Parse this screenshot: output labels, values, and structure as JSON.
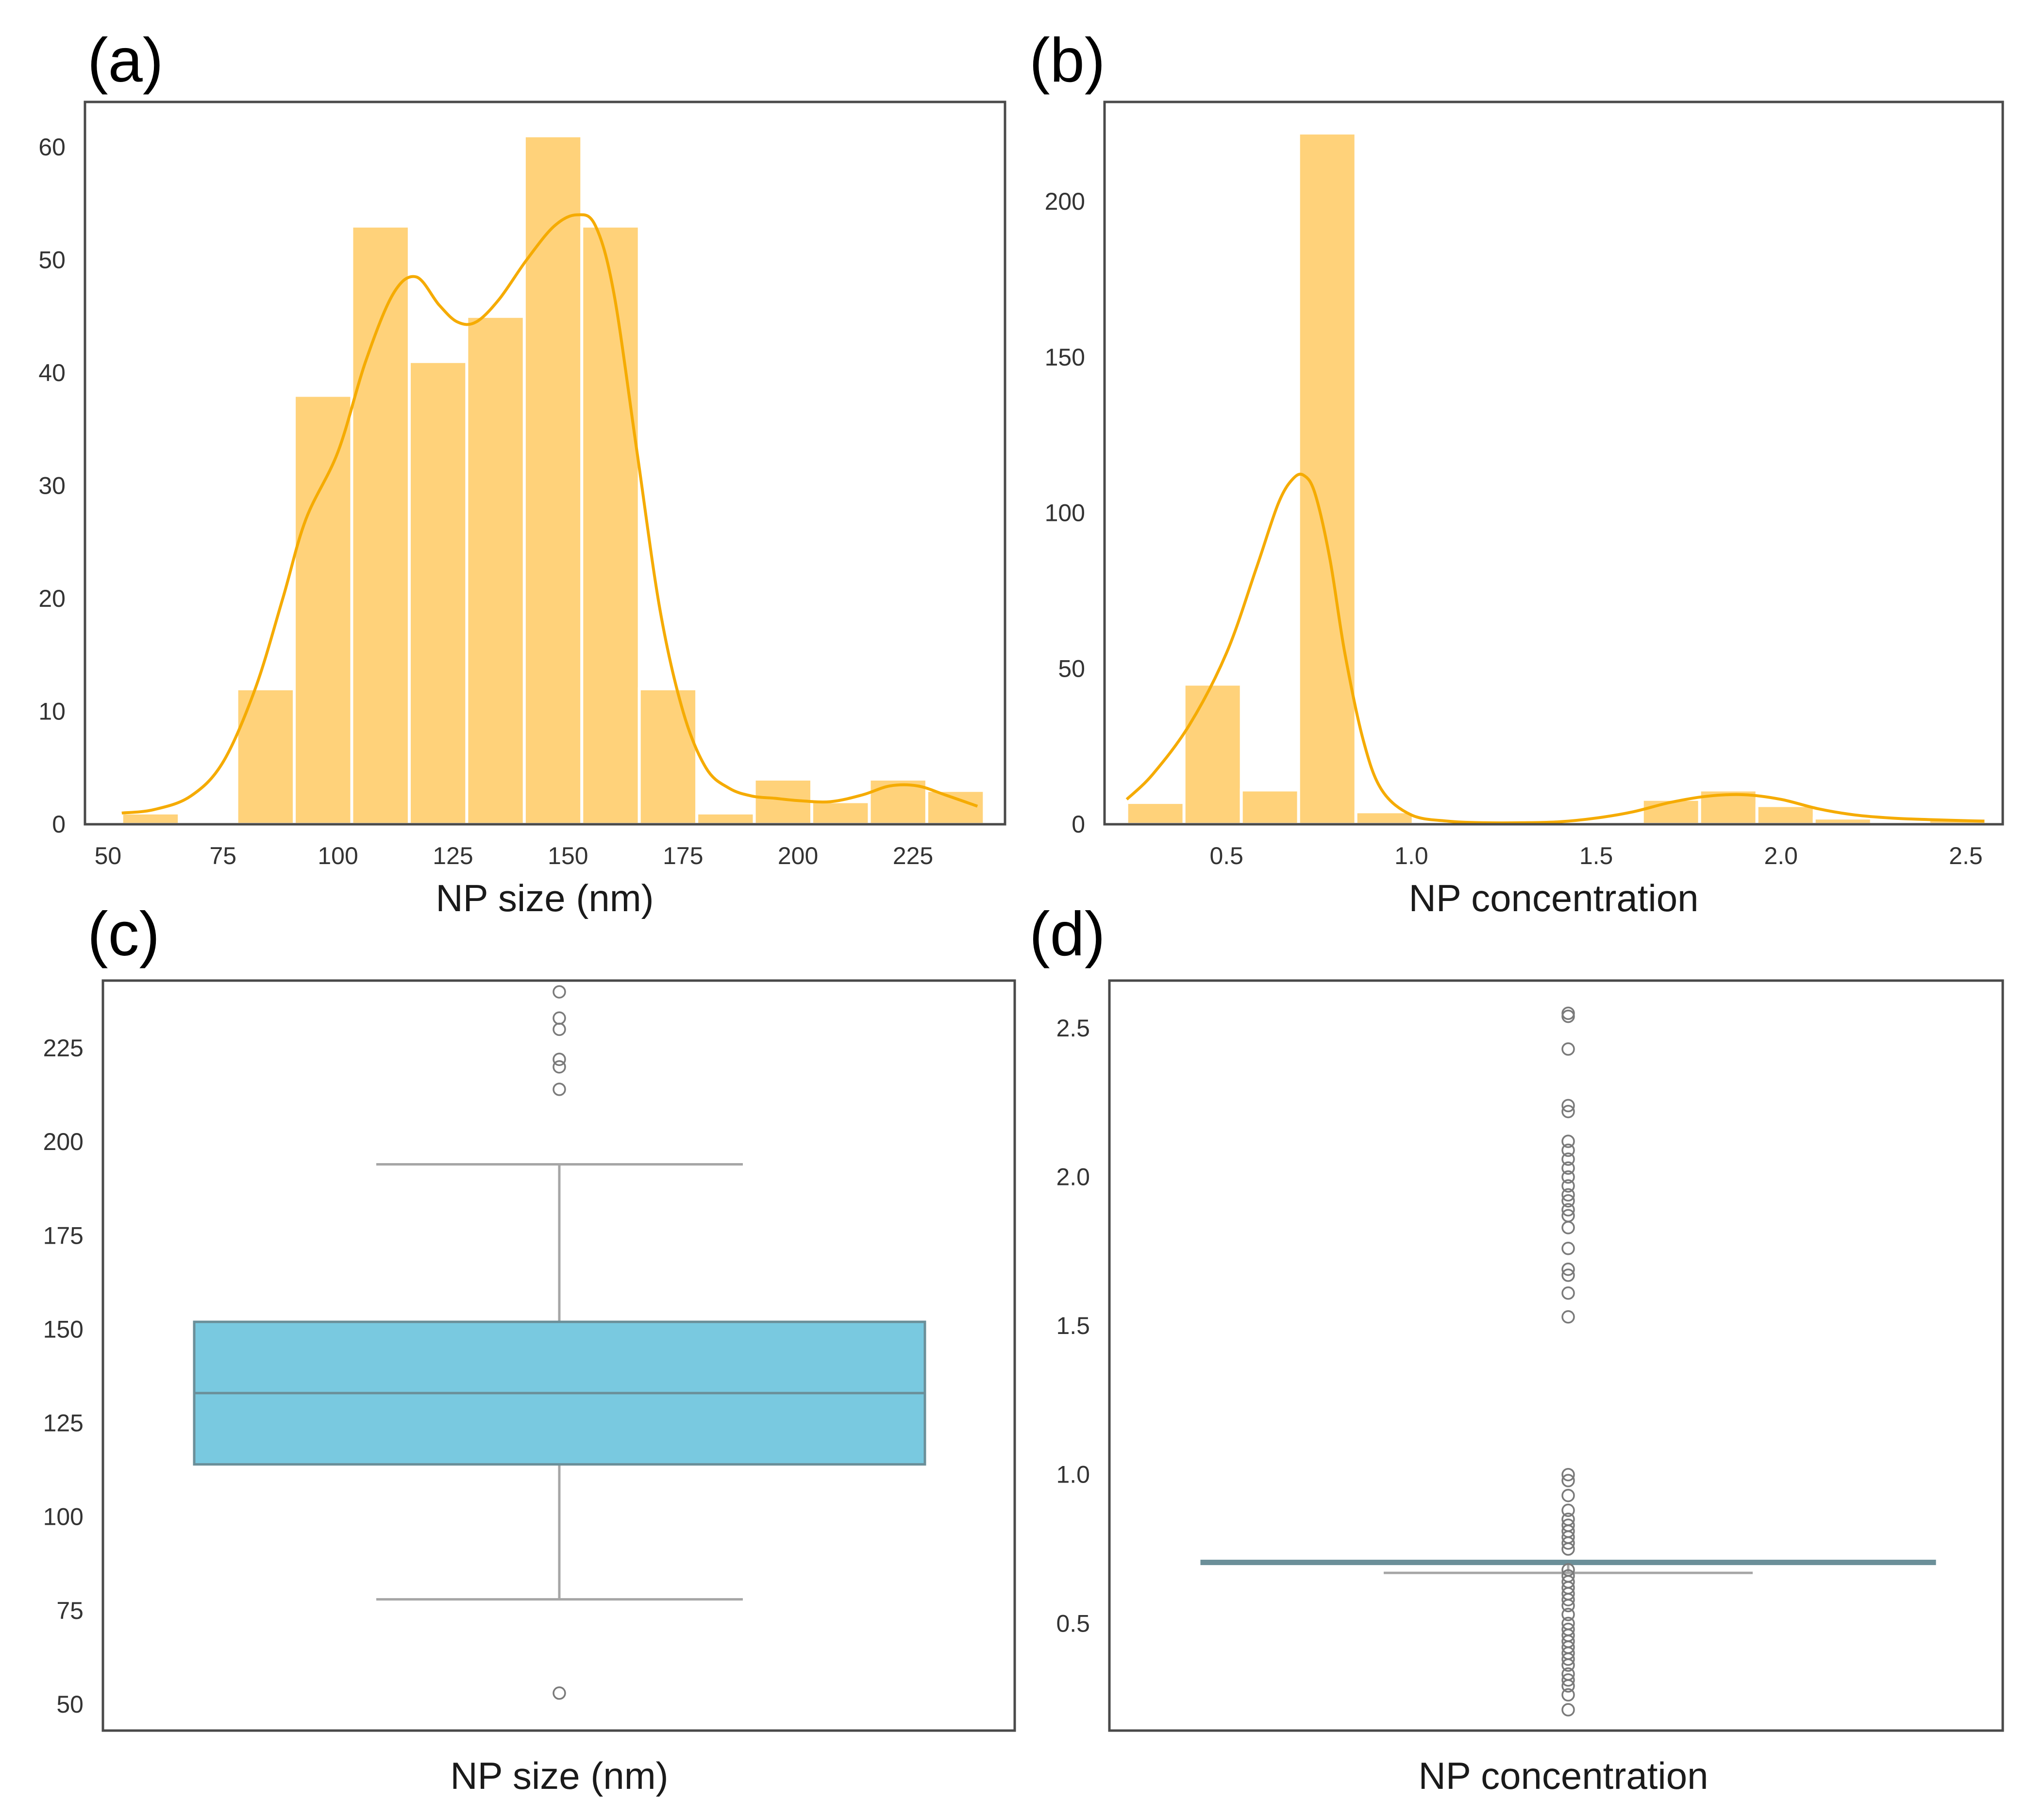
{
  "colors": {
    "hist_fill": "#ffd27a",
    "hist_edge": "#ffffff",
    "kde_line": "#f5ab00",
    "box_fill": "#79c9e0",
    "box_edge": "#6b8f99",
    "whisker": "#a6a6a6",
    "outlier": "#7a7a7a",
    "frame": "#4a4a4a"
  },
  "chart_data": [
    {
      "id": "a",
      "panel_label": "(a)",
      "type": "bar",
      "subtype": "histogram_with_kde",
      "xlabel": "NP size (nm)",
      "ylabel": "",
      "xlim": [
        45,
        245
      ],
      "ylim": [
        0,
        64
      ],
      "xticks": [
        50,
        75,
        100,
        125,
        150,
        175,
        200,
        225
      ],
      "xtick_labels": [
        "50",
        "75",
        "100",
        "125",
        "150",
        "175",
        "200",
        "225"
      ],
      "yticks": [
        0,
        10,
        20,
        30,
        40,
        50,
        60
      ],
      "ytick_labels": [
        "0",
        "10",
        "20",
        "30",
        "40",
        "50",
        "60"
      ],
      "bins": [
        {
          "x0": 53,
          "x1": 65.5,
          "count": 1
        },
        {
          "x0": 78,
          "x1": 90.5,
          "count": 12
        },
        {
          "x0": 90.5,
          "x1": 103,
          "count": 38
        },
        {
          "x0": 103,
          "x1": 115.5,
          "count": 53
        },
        {
          "x0": 115.5,
          "x1": 128,
          "count": 41
        },
        {
          "x0": 128,
          "x1": 140.5,
          "count": 45
        },
        {
          "x0": 140.5,
          "x1": 153,
          "count": 61
        },
        {
          "x0": 153,
          "x1": 165.5,
          "count": 53
        },
        {
          "x0": 165.5,
          "x1": 178,
          "count": 12
        },
        {
          "x0": 178,
          "x1": 190.5,
          "count": 1
        },
        {
          "x0": 190.5,
          "x1": 203,
          "count": 4
        },
        {
          "x0": 203,
          "x1": 215.5,
          "count": 2
        },
        {
          "x0": 215.5,
          "x1": 228,
          "count": 4
        },
        {
          "x0": 228,
          "x1": 240.5,
          "count": 3
        }
      ],
      "kde": {
        "x": [
          53,
          60,
          68,
          75,
          82,
          88,
          93,
          100,
          106,
          112,
          117,
          122,
          126,
          130,
          135,
          141,
          147,
          152,
          156,
          160,
          165,
          170,
          175,
          180,
          185,
          190,
          195,
          200,
          207,
          214,
          220,
          226,
          232,
          239
        ],
        "y": [
          1,
          1.3,
          2.5,
          5.5,
          12,
          20,
          27,
          33,
          41,
          47,
          48.5,
          46,
          44.5,
          44.5,
          46.5,
          50,
          53,
          54,
          53,
          47,
          33,
          19,
          10,
          5,
          3.2,
          2.5,
          2.3,
          2.1,
          2,
          2.6,
          3.4,
          3.4,
          2.6,
          1.6
        ]
      }
    },
    {
      "id": "b",
      "panel_label": "(b)",
      "type": "bar",
      "subtype": "histogram_with_kde",
      "xlabel": "NP concentration",
      "ylabel": "",
      "xlim": [
        0.17,
        2.6
      ],
      "ylim": [
        0,
        232
      ],
      "xticks": [
        0.5,
        1.0,
        1.5,
        2.0,
        2.5
      ],
      "xtick_labels": [
        "0.5",
        "1.0",
        "1.5",
        "2.0",
        "2.5"
      ],
      "yticks": [
        0,
        50,
        100,
        150,
        200
      ],
      "ytick_labels": [
        "0",
        "50",
        "100",
        "150",
        "200"
      ],
      "bins": [
        {
          "x0": 0.23,
          "x1": 0.385,
          "count": 7
        },
        {
          "x0": 0.385,
          "x1": 0.54,
          "count": 45
        },
        {
          "x0": 0.54,
          "x1": 0.695,
          "count": 11
        },
        {
          "x0": 0.695,
          "x1": 0.85,
          "count": 222
        },
        {
          "x0": 0.85,
          "x1": 1.005,
          "count": 4
        },
        {
          "x0": 1.005,
          "x1": 1.16,
          "count": 0
        },
        {
          "x0": 1.16,
          "x1": 1.315,
          "count": 0
        },
        {
          "x0": 1.315,
          "x1": 1.47,
          "count": 0
        },
        {
          "x0": 1.47,
          "x1": 1.625,
          "count": 0
        },
        {
          "x0": 1.625,
          "x1": 1.78,
          "count": 8
        },
        {
          "x0": 1.78,
          "x1": 1.935,
          "count": 11
        },
        {
          "x0": 1.935,
          "x1": 2.09,
          "count": 6
        },
        {
          "x0": 2.09,
          "x1": 2.245,
          "count": 2
        },
        {
          "x0": 2.245,
          "x1": 2.4,
          "count": 0
        },
        {
          "x0": 2.4,
          "x1": 2.555,
          "count": 2
        }
      ],
      "kde": {
        "x": [
          0.23,
          0.3,
          0.4,
          0.5,
          0.58,
          0.64,
          0.68,
          0.71,
          0.74,
          0.78,
          0.82,
          0.87,
          0.92,
          1.0,
          1.1,
          1.2,
          1.3,
          1.4,
          1.5,
          1.6,
          1.7,
          1.8,
          1.9,
          2.0,
          2.1,
          2.2,
          2.3,
          2.4,
          2.55
        ],
        "y": [
          8,
          16,
          32,
          55,
          82,
          103,
          111,
          112,
          106,
          85,
          55,
          27,
          11,
          3,
          1,
          0.5,
          0.5,
          0.8,
          2,
          4,
          7,
          9,
          9.5,
          8,
          5,
          3,
          2,
          1.5,
          1
        ]
      }
    },
    {
      "id": "c",
      "panel_label": "(c)",
      "type": "box",
      "xlabel": "NP size (nm)",
      "ylabel": "",
      "ylim": [
        43,
        243
      ],
      "yticks": [
        50,
        75,
        100,
        125,
        150,
        175,
        200,
        225
      ],
      "ytick_labels": [
        "50",
        "75",
        "100",
        "125",
        "150",
        "175",
        "200",
        "225"
      ],
      "box": {
        "q1": 114,
        "median": 133,
        "q3": 152,
        "whisker_low": 78,
        "whisker_high": 194
      },
      "outliers": [
        53,
        214,
        220,
        222,
        230,
        233,
        240
      ]
    },
    {
      "id": "d",
      "panel_label": "(d)",
      "type": "box",
      "xlabel": "NP concentration",
      "ylabel": "",
      "ylim": [
        0.14,
        2.66
      ],
      "yticks": [
        0.5,
        1.0,
        1.5,
        2.0,
        2.5
      ],
      "ytick_labels": [
        "0.5",
        "1.0",
        "1.5",
        "2.0",
        "2.5"
      ],
      "box": {
        "q1": 0.7,
        "median": 0.705,
        "q3": 0.71,
        "whisker_low": 0.67,
        "whisker_high": 0.71
      },
      "outliers": [
        0.21,
        0.26,
        0.29,
        0.31,
        0.33,
        0.36,
        0.38,
        0.4,
        0.42,
        0.44,
        0.46,
        0.48,
        0.5,
        0.53,
        0.56,
        0.58,
        0.6,
        0.62,
        0.64,
        0.66,
        0.68,
        0.75,
        0.77,
        0.79,
        0.81,
        0.83,
        0.85,
        0.88,
        0.93,
        0.98,
        1.0,
        1.53,
        1.61,
        1.67,
        1.69,
        1.76,
        1.83,
        1.87,
        1.89,
        1.92,
        1.94,
        1.97,
        2.0,
        2.03,
        2.06,
        2.09,
        2.12,
        2.22,
        2.24,
        2.43,
        2.54,
        2.55
      ]
    }
  ]
}
